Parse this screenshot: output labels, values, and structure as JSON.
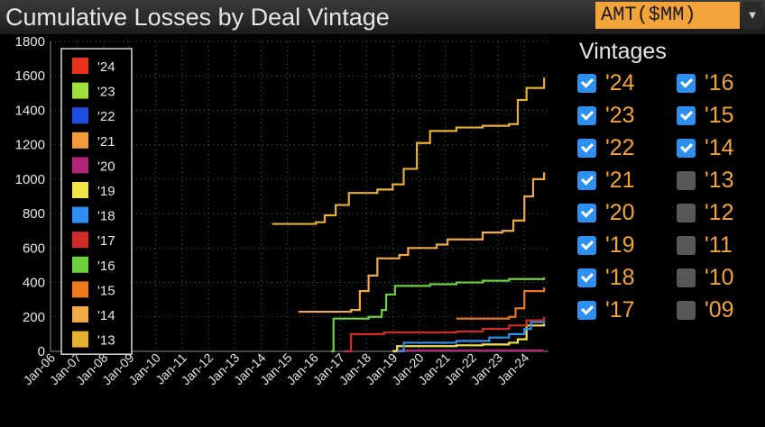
{
  "header": {
    "title": "Cumulative Losses by Deal Vintage",
    "unit_select": "AMT($MM)",
    "dropdown_arrow": "▼"
  },
  "vintage_panel": {
    "heading": "Vintages",
    "left_column": [
      {
        "label": "'24",
        "checked": true
      },
      {
        "label": "'23",
        "checked": true
      },
      {
        "label": "'22",
        "checked": true
      },
      {
        "label": "'21",
        "checked": true
      },
      {
        "label": "'20",
        "checked": true
      },
      {
        "label": "'19",
        "checked": true
      },
      {
        "label": "'18",
        "checked": true
      },
      {
        "label": "'17",
        "checked": true
      }
    ],
    "right_column": [
      {
        "label": "'16",
        "checked": true
      },
      {
        "label": "'15",
        "checked": true
      },
      {
        "label": "'14",
        "checked": true
      },
      {
        "label": "'13",
        "checked": false
      },
      {
        "label": "'12",
        "checked": false
      },
      {
        "label": "'11",
        "checked": false
      },
      {
        "label": "'10",
        "checked": false
      },
      {
        "label": "'09",
        "checked": false
      }
    ]
  },
  "colors": {
    "background": "#000000",
    "grid": "#5a5a5a",
    "axis_text": "#e6e6e6",
    "accent": "#f2a33a",
    "checkbox_on": "#2d8ff0",
    "checkbox_off": "#585858"
  },
  "chart_data": {
    "type": "line",
    "title": "",
    "xlabel": "",
    "ylabel": "",
    "ylim": [
      0,
      1800
    ],
    "yticks": [
      "0",
      "200",
      "400",
      "600",
      "800",
      "1000",
      "1200",
      "1400",
      "1600",
      "1800"
    ],
    "xlim": [
      "2006-01",
      "2024-12"
    ],
    "xticks": [
      "Jan-06",
      "Jan-07",
      "Jan-08",
      "Jan-09",
      "Jan-10",
      "Jan-11",
      "Jan-12",
      "Jan-13",
      "Jan-14",
      "Jan-15",
      "Jan-16",
      "Jan-17",
      "Jan-18",
      "Jan-19",
      "Jan-20",
      "Jan-21",
      "Jan-22",
      "Jan-23",
      "Jan-24"
    ],
    "grid": true,
    "legend_position": "top-left",
    "series": [
      {
        "name": "'24",
        "color": "#e8321e",
        "points": []
      },
      {
        "name": "'23",
        "color": "#9ee03c",
        "points": []
      },
      {
        "name": "'22",
        "color": "#1f4fe0",
        "points": []
      },
      {
        "name": "'21",
        "color": "#f29a3c",
        "points": []
      },
      {
        "name": "'20",
        "color": "#b0247a",
        "points": [
          [
            "2019-01",
            5
          ],
          [
            "2024-10",
            5
          ]
        ]
      },
      {
        "name": "'19",
        "color": "#f2e24a",
        "points": [
          [
            "2019-01",
            0
          ],
          [
            "2019-03",
            30
          ],
          [
            "2021-06",
            35
          ],
          [
            "2022-06",
            40
          ],
          [
            "2023-06",
            50
          ],
          [
            "2023-10",
            70
          ],
          [
            "2024-02",
            150
          ],
          [
            "2024-10",
            160
          ]
        ]
      },
      {
        "name": "'18",
        "color": "#2f8ff0",
        "points": [
          [
            "2019-03",
            0
          ],
          [
            "2019-06",
            50
          ],
          [
            "2021-06",
            60
          ],
          [
            "2022-09",
            80
          ],
          [
            "2023-06",
            100
          ],
          [
            "2024-01",
            130
          ],
          [
            "2024-04",
            170
          ],
          [
            "2024-10",
            180
          ]
        ]
      },
      {
        "name": "'17",
        "color": "#d02a2a",
        "points": [
          [
            "2017-03",
            0
          ],
          [
            "2017-06",
            100
          ],
          [
            "2018-09",
            110
          ],
          [
            "2021-06",
            115
          ],
          [
            "2022-06",
            130
          ],
          [
            "2023-06",
            150
          ],
          [
            "2024-02",
            180
          ],
          [
            "2024-10",
            200
          ]
        ]
      },
      {
        "name": "'16",
        "color": "#6ed03c",
        "points": [
          [
            "2016-09",
            0
          ],
          [
            "2016-10",
            190
          ],
          [
            "2018-02",
            200
          ],
          [
            "2018-08",
            240
          ],
          [
            "2018-10",
            330
          ],
          [
            "2019-02",
            380
          ],
          [
            "2020-06",
            390
          ],
          [
            "2021-06",
            400
          ],
          [
            "2022-06",
            410
          ],
          [
            "2023-06",
            420
          ],
          [
            "2024-10",
            430
          ]
        ]
      },
      {
        "name": "'15",
        "color": "#ec7a1c",
        "points": [
          [
            "2021-06",
            190
          ],
          [
            "2023-06",
            200
          ],
          [
            "2023-09",
            250
          ],
          [
            "2024-01",
            350
          ],
          [
            "2024-10",
            370
          ]
        ]
      },
      {
        "name": "'14",
        "color": "#f2a844",
        "points": [
          [
            "2015-06",
            230
          ],
          [
            "2017-06",
            240
          ],
          [
            "2017-10",
            350
          ],
          [
            "2018-02",
            440
          ],
          [
            "2018-06",
            540
          ],
          [
            "2019-04",
            560
          ],
          [
            "2019-08",
            600
          ],
          [
            "2020-09",
            620
          ],
          [
            "2021-02",
            650
          ],
          [
            "2022-06",
            690
          ],
          [
            "2023-03",
            700
          ],
          [
            "2023-08",
            760
          ],
          [
            "2024-01",
            900
          ],
          [
            "2024-05",
            1000
          ],
          [
            "2024-10",
            1040
          ]
        ]
      },
      {
        "name": "'13",
        "color": "#e8b030",
        "points": [
          [
            "2014-06",
            740
          ],
          [
            "2016-02",
            750
          ],
          [
            "2016-06",
            790
          ],
          [
            "2016-11",
            850
          ],
          [
            "2017-05",
            920
          ],
          [
            "2018-06",
            940
          ],
          [
            "2019-01",
            970
          ],
          [
            "2019-06",
            1060
          ],
          [
            "2019-12",
            1210
          ],
          [
            "2020-06",
            1280
          ],
          [
            "2021-06",
            1300
          ],
          [
            "2022-06",
            1310
          ],
          [
            "2023-06",
            1320
          ],
          [
            "2023-10",
            1460
          ],
          [
            "2024-02",
            1530
          ],
          [
            "2024-10",
            1590
          ]
        ]
      }
    ]
  }
}
